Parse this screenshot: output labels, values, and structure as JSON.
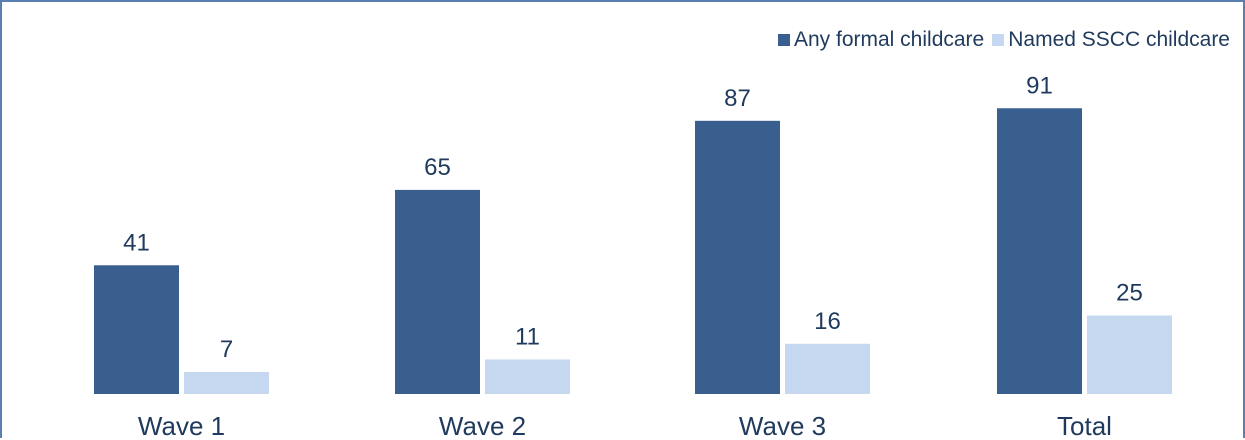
{
  "chart_data": {
    "type": "bar",
    "title": "",
    "xlabel": "",
    "ylabel": "",
    "categories": [
      "Wave 1",
      "Wave 2",
      "Wave 3",
      "Total"
    ],
    "series": [
      {
        "name": "Any formal childcare",
        "values": [
          41,
          65,
          87,
          91
        ],
        "color": "#395f8f"
      },
      {
        "name": "Named SSCC childcare",
        "values": [
          7,
          11,
          16,
          25
        ],
        "color": "#c6d8ef"
      }
    ],
    "data_labels": {
      "Any formal childcare": [
        "41",
        "65",
        "87",
        "91"
      ],
      "Named SSCC childcare": [
        "7",
        "11",
        "16",
        "25"
      ]
    },
    "ylim": [
      0,
      100
    ],
    "grid": false,
    "legend_position": "top-right"
  }
}
